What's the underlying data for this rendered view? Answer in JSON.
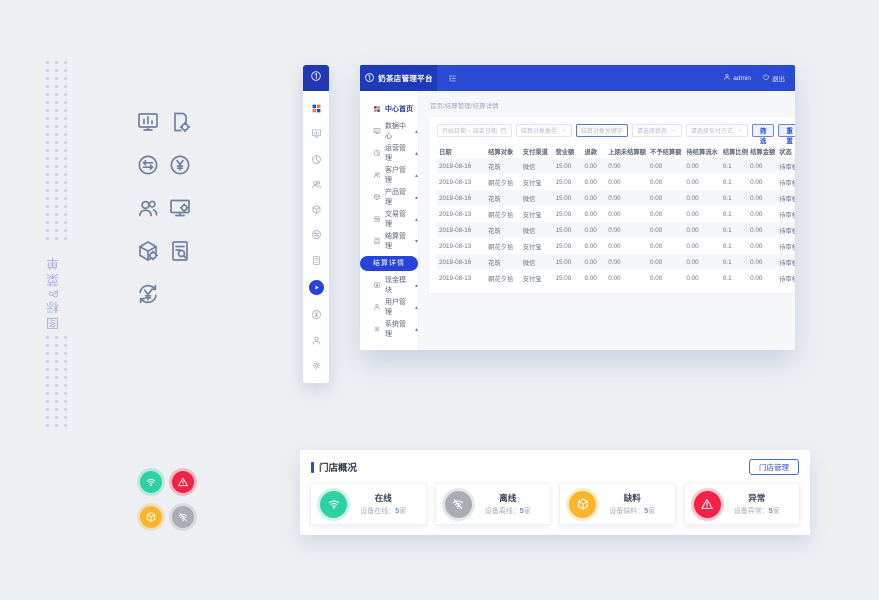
{
  "page": {
    "bg": "#edeff3",
    "accent_blue": "#2b49d4",
    "vertical_label": "图标&菜单"
  },
  "icon_sheet": {
    "icons": [
      {
        "icon": "monitor-chart",
        "name": "dashboard-monitor"
      },
      {
        "icon": "doc-gear",
        "name": "report-config"
      },
      {
        "icon": "circle-swap",
        "name": "transfer"
      },
      {
        "icon": "circle-yen",
        "name": "currency"
      },
      {
        "icon": "users",
        "name": "customers"
      },
      {
        "icon": "monitor-gear",
        "name": "device-config"
      },
      {
        "icon": "box-gear",
        "name": "product-config"
      },
      {
        "icon": "doc-search",
        "name": "record-search"
      },
      {
        "icon": "yen-refresh",
        "name": "refund"
      }
    ]
  },
  "mini_sidebar": {
    "items": [
      {
        "icon": "grid-colored",
        "name": "home",
        "colored": true
      },
      {
        "icon": "monitor-chart",
        "name": "data-center"
      },
      {
        "icon": "pie",
        "name": "operations"
      },
      {
        "icon": "users",
        "name": "customers"
      },
      {
        "icon": "box",
        "name": "products"
      },
      {
        "icon": "circle-swap",
        "name": "transactions"
      },
      {
        "icon": "calc",
        "name": "settlement"
      },
      {
        "icon": "play",
        "name": "settlement-detail",
        "active": true
      },
      {
        "icon": "circle-yen",
        "name": "cash"
      },
      {
        "icon": "person",
        "name": "user-management"
      },
      {
        "icon": "gear",
        "name": "system"
      }
    ]
  },
  "app": {
    "header": {
      "title": "奶茶店管理平台",
      "user": "admin",
      "logout": "退出"
    },
    "menu": {
      "items": [
        {
          "label": "中心首页",
          "icon": "grid-colored",
          "home": true
        },
        {
          "label": "数据中心",
          "icon": "monitor-chart",
          "arrow": "up"
        },
        {
          "label": "运营管理",
          "icon": "pie",
          "arrow": "up"
        },
        {
          "label": "客户管理",
          "icon": "users",
          "arrow": "up"
        },
        {
          "label": "产品管理",
          "icon": "box",
          "arrow": "up"
        },
        {
          "label": "交易管理",
          "icon": "circle-swap",
          "arrow": "up"
        },
        {
          "label": "结算管理",
          "icon": "calc",
          "arrow": "down"
        },
        {
          "label": "结算详情",
          "pill": true
        },
        {
          "label": "现金模块",
          "icon": "circle-yen",
          "arrow": "up"
        },
        {
          "label": "用户管理",
          "icon": "person",
          "arrow": "up"
        },
        {
          "label": "系统管理",
          "icon": "gear",
          "arrow": "up"
        }
      ]
    },
    "breadcrumb": "首页/结算管理/结算详情",
    "filters": {
      "controls": [
        {
          "kind": "date",
          "placeholder": "开始日期 ~ 结束日期",
          "name": "date-range"
        },
        {
          "kind": "select",
          "placeholder": "结算对象类型",
          "name": "object-type"
        },
        {
          "kind": "input",
          "placeholder": "结算对象关键字",
          "name": "object-keyword",
          "highlight": true
        },
        {
          "kind": "select",
          "placeholder": "请选择状态",
          "name": "status"
        },
        {
          "kind": "select",
          "placeholder": "请选择支付方式",
          "name": "pay-method"
        }
      ],
      "filter_button": "筛 选",
      "reset_button": "重 置"
    },
    "table": {
      "columns": [
        "日期",
        "结算对象",
        "支付渠道",
        "营业额",
        "退款",
        "上期未结算额",
        "不予结算额",
        "待结算流水",
        "结算比例",
        "结算金额",
        "状态"
      ],
      "rows": [
        [
          "2019-08-16",
          "花筑",
          "微信",
          "15.00",
          "0.00",
          "0.00",
          "0.00",
          "0.00",
          "0.1",
          "0.00",
          "待审核"
        ],
        [
          "2019-08-13",
          "朝花夕拾",
          "支付宝",
          "15.00",
          "0.00",
          "0.00",
          "0.00",
          "0.00",
          "0.1",
          "0.00",
          "待审核"
        ],
        [
          "2019-08-16",
          "花筑",
          "微信",
          "15.00",
          "0.00",
          "0.00",
          "0.00",
          "0.00",
          "0.1",
          "0.00",
          "待审核"
        ],
        [
          "2019-08-13",
          "朝花夕拾",
          "支付宝",
          "15.00",
          "0.00",
          "0.00",
          "0.00",
          "0.00",
          "0.1",
          "0.00",
          "待审核"
        ],
        [
          "2019-08-16",
          "花筑",
          "微信",
          "15.00",
          "0.00",
          "0.00",
          "0.00",
          "0.00",
          "0.1",
          "0.00",
          "待审核"
        ],
        [
          "2019-08-13",
          "朝花夕拾",
          "支付宝",
          "15.00",
          "0.00",
          "0.00",
          "0.00",
          "0.00",
          "0.1",
          "0.00",
          "待审核"
        ],
        [
          "2019-08-16",
          "花筑",
          "微信",
          "15.00",
          "0.00",
          "0.00",
          "0.00",
          "0.00",
          "0.1",
          "0.00",
          "待审核"
        ],
        [
          "2019-08-13",
          "朝花夕拾",
          "支付宝",
          "15.00",
          "0.00",
          "0.00",
          "0.00",
          "0.00",
          "0.1",
          "0.00",
          "待审核"
        ]
      ]
    }
  },
  "store_panel": {
    "title": "门店概况",
    "manage_button": "门店管理",
    "cards": [
      {
        "title": "在线",
        "label": "设备在线：",
        "count": "5",
        "unit": "家",
        "icon": "wifi",
        "color": "#2fd1a2",
        "halo": "rgba(47,209,162,0.25)"
      },
      {
        "title": "离线",
        "label": "设备离线：",
        "count": "5",
        "unit": "家",
        "icon": "wifi-off",
        "color": "#a9adb3",
        "halo": "rgba(169,173,179,0.30)"
      },
      {
        "title": "缺料",
        "label": "设备缺料：",
        "count": "5",
        "unit": "家",
        "icon": "box",
        "color": "#f8b62d",
        "halo": "rgba(248,182,45,0.28)"
      },
      {
        "title": "异常",
        "label": "设备异常：",
        "count": "5",
        "unit": "家",
        "icon": "warning",
        "color": "#f42045",
        "halo": "rgba(244,32,69,0.25)"
      }
    ]
  },
  "swatches": [
    {
      "icon": "wifi",
      "color": "#2fd1a2",
      "halo": "rgba(47,209,162,0.25)",
      "name": "online"
    },
    {
      "icon": "warning",
      "color": "#f42045",
      "halo": "rgba(244,32,69,0.25)",
      "name": "alert"
    },
    {
      "icon": "box",
      "color": "#f8b62d",
      "halo": "rgba(248,182,45,0.28)",
      "name": "material"
    },
    {
      "icon": "wifi-off",
      "color": "#a9adb3",
      "halo": "rgba(169,173,179,0.30)",
      "name": "offline"
    }
  ]
}
